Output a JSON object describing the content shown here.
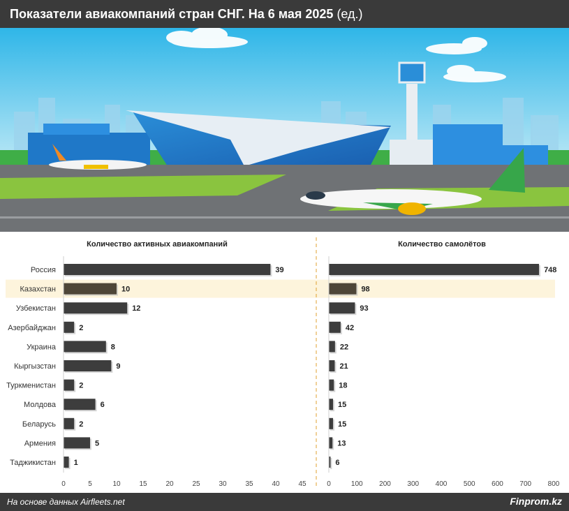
{
  "header": {
    "title": "Показатели авиакомпаний стран СНГ. На 6 мая 2025",
    "unit": "(ед.)"
  },
  "footer": {
    "source": "На основе данных Airfleets.net",
    "brand": "Finprom.kz"
  },
  "colors": {
    "bar": "#3d3d3d",
    "highlight_bar": "#4e4638",
    "highlight_row": "#fdf4dc",
    "divider": "#e0a030",
    "header_bg": "#3a3a3a"
  },
  "chart_data": [
    {
      "type": "bar",
      "orientation": "horizontal",
      "title": "Количество активных авиакомпаний",
      "categories": [
        "Россия",
        "Казахстан",
        "Узбекистан",
        "Азербайджан",
        "Украина",
        "Кыргызстан",
        "Туркменистан",
        "Молдова",
        "Беларусь",
        "Армения",
        "Таджикистан"
      ],
      "values": [
        39,
        10,
        12,
        2,
        8,
        9,
        2,
        6,
        2,
        5,
        1
      ],
      "highlight": "Казахстан",
      "xlim": [
        0,
        45
      ],
      "xticks": [
        0,
        5,
        10,
        15,
        20,
        25,
        30,
        35,
        40,
        45
      ]
    },
    {
      "type": "bar",
      "orientation": "horizontal",
      "title": "Количество самолётов",
      "categories": [
        "Россия",
        "Казахстан",
        "Узбекистан",
        "Азербайджан",
        "Украина",
        "Кыргызстан",
        "Туркменистан",
        "Молдова",
        "Беларусь",
        "Армения",
        "Таджикистан"
      ],
      "values": [
        748,
        98,
        93,
        42,
        22,
        21,
        18,
        15,
        15,
        13,
        6
      ],
      "highlight": "Казахстан",
      "xlim": [
        0,
        800
      ],
      "xticks": [
        0,
        100,
        200,
        300,
        400,
        500,
        600,
        700,
        800
      ]
    }
  ]
}
